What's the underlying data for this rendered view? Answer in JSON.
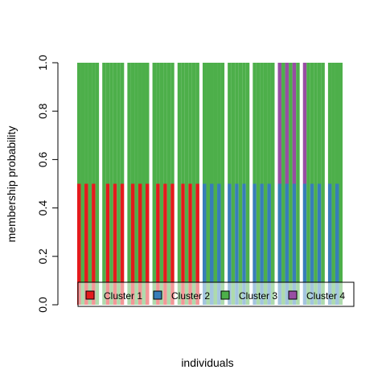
{
  "chart_data": {
    "type": "bar",
    "stacked": true,
    "xlabel": "individuals",
    "ylabel": "membership probability",
    "ylim": [
      0,
      1
    ],
    "yticks": [
      "0.0",
      "0.2",
      "0.4",
      "0.6",
      "0.8",
      "1.0"
    ],
    "grid": false,
    "legend_position": "bottom-right inside plot",
    "series": [
      {
        "name": "Cluster 1",
        "color": "#e41a1c"
      },
      {
        "name": "Cluster 2",
        "color": "#377eb8"
      },
      {
        "name": "Cluster 3",
        "color": "#4daf4a"
      },
      {
        "name": "Cluster 4",
        "color": "#984ea3"
      }
    ],
    "individuals": [
      [
        0.5,
        0,
        0.5,
        0
      ],
      [
        0,
        0,
        1,
        0
      ],
      [
        0.5,
        0,
        0.5,
        0
      ],
      [
        0,
        0,
        1,
        0
      ],
      [
        0.5,
        0,
        0.5,
        0
      ],
      [
        0,
        0,
        1,
        0
      ],
      [
        0,
        0,
        1,
        0
      ],
      [
        0.5,
        0,
        0.5,
        0
      ],
      [
        0,
        0,
        1,
        0
      ],
      [
        0.5,
        0,
        0.5,
        0
      ],
      [
        0,
        0,
        1,
        0
      ],
      [
        0.5,
        0,
        0.5,
        0
      ],
      [
        0,
        0,
        1,
        0
      ],
      [
        0.5,
        0,
        0.5,
        0
      ],
      [
        0,
        0,
        1,
        0
      ],
      [
        0.5,
        0,
        0.5,
        0
      ],
      [
        0,
        0,
        1,
        0
      ],
      [
        0.5,
        0,
        0.5,
        0
      ],
      [
        0,
        0,
        1,
        0
      ],
      [
        0.5,
        0,
        0.5,
        0
      ],
      [
        0,
        0,
        1,
        0
      ],
      [
        0.5,
        0,
        0.5,
        0
      ],
      [
        0,
        0,
        1,
        0
      ],
      [
        0.5,
        0,
        0.5,
        0
      ],
      [
        0,
        0,
        1,
        0
      ],
      [
        0.5,
        0,
        0.5,
        0
      ],
      [
        0,
        0,
        1,
        0
      ],
      [
        0.5,
        0,
        0.5,
        0
      ],
      [
        0,
        0,
        1,
        0
      ],
      [
        0.5,
        0,
        0.5,
        0
      ],
      [
        0,
        0.5,
        0.5,
        0
      ],
      [
        0,
        0,
        1,
        0
      ],
      [
        0,
        0.5,
        0.5,
        0
      ],
      [
        0,
        0,
        1,
        0
      ],
      [
        0,
        0.5,
        0.5,
        0
      ],
      [
        0,
        0,
        1,
        0
      ],
      [
        0,
        0.5,
        0.5,
        0
      ],
      [
        0,
        0,
        1,
        0
      ],
      [
        0,
        0.5,
        0.5,
        0
      ],
      [
        0,
        0,
        1,
        0
      ],
      [
        0,
        0.5,
        0.5,
        0
      ],
      [
        0,
        0,
        1,
        0
      ],
      [
        0,
        0.5,
        0.5,
        0
      ],
      [
        0,
        0,
        1,
        0
      ],
      [
        0,
        0.5,
        0.5,
        0
      ],
      [
        0,
        0,
        1,
        0
      ],
      [
        0,
        0.5,
        0.5,
        0
      ],
      [
        0,
        0,
        1,
        0
      ],
      [
        0,
        0.5,
        0,
        0.5
      ],
      [
        0,
        0,
        1,
        0
      ],
      [
        0,
        0.5,
        0,
        0.5
      ],
      [
        0,
        0,
        1,
        0
      ],
      [
        0,
        0.5,
        0,
        0.5
      ],
      [
        0,
        0,
        1,
        0
      ],
      [
        0,
        0.5,
        0,
        0.5
      ],
      [
        0,
        0,
        1,
        0
      ],
      [
        0,
        0.5,
        0.5,
        0
      ],
      [
        0,
        0,
        1,
        0
      ],
      [
        0,
        0.5,
        0.5,
        0
      ],
      [
        0,
        0,
        1,
        0
      ],
      [
        0,
        0.5,
        0.5,
        0
      ],
      [
        0,
        0,
        1,
        0
      ],
      [
        0,
        0.5,
        0.5,
        0
      ],
      [
        0,
        0,
        1,
        0
      ]
    ],
    "gap_after": [
      5,
      11,
      17,
      23,
      29,
      35,
      41,
      47,
      53,
      59
    ]
  }
}
